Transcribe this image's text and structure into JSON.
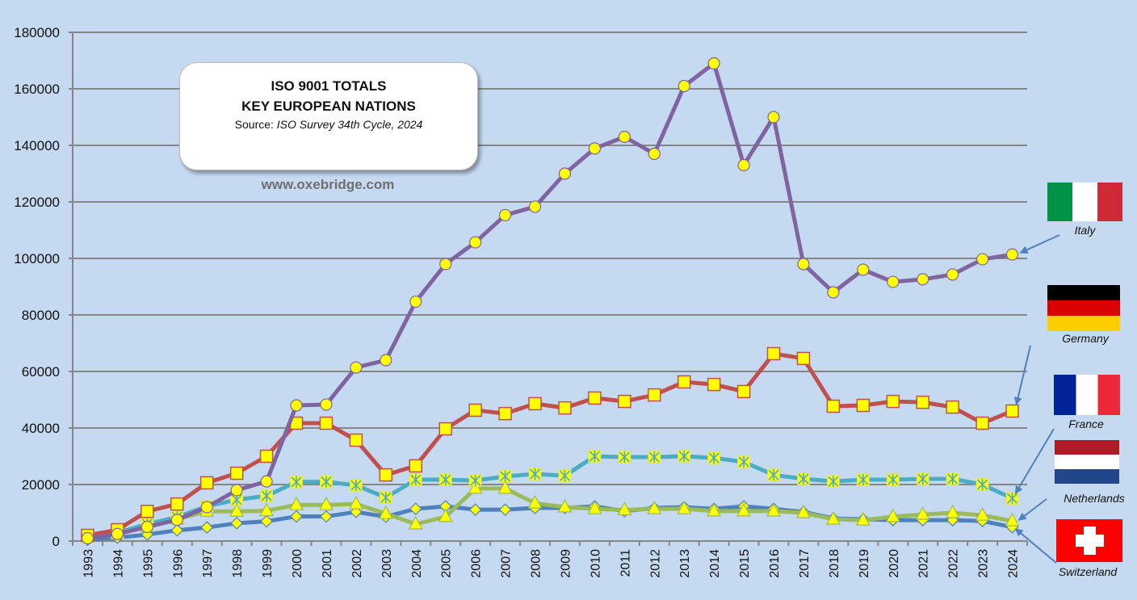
{
  "title_box": {
    "line1": "ISO 9001 TOTALS",
    "line2": "KEY EUROPEAN NATIONS",
    "source_prefix": "Source: ",
    "source_italic": "ISO Survey 34th Cycle, 2024"
  },
  "website": "www.oxebridge.com",
  "colors": {
    "background": "#c5d9f0",
    "gridline": "#868686",
    "marker_fill": "#ffff00"
  },
  "legend": [
    {
      "country": "Italy",
      "flag": "italy-flag",
      "colors": [
        "#009246",
        "#ffffff",
        "#ce2b37"
      ]
    },
    {
      "country": "Germany",
      "flag": "germany-flag",
      "colors": [
        "#000000",
        "#dd0000",
        "#ffce00"
      ]
    },
    {
      "country": "France",
      "flag": "france-flag",
      "colors": [
        "#002395",
        "#ffffff",
        "#ed2939"
      ]
    },
    {
      "country": "Netherlands",
      "flag": "netherlands-flag",
      "colors": [
        "#ae1c28",
        "#ffffff",
        "#21468b"
      ]
    },
    {
      "country": "Switzerland",
      "flag": "switzerland-flag",
      "colors": [
        "#ff0000",
        "#ffffff"
      ]
    }
  ],
  "chart_data": {
    "type": "line",
    "title": "ISO 9001 TOTALS - KEY EUROPEAN NATIONS",
    "subtitle": "Source: ISO Survey 34th Cycle, 2024",
    "xlabel": "",
    "ylabel": "",
    "ylim": [
      0,
      180000
    ],
    "yticks": [
      "0",
      "20000",
      "40000",
      "60000",
      "80000",
      "100000",
      "120000",
      "140000",
      "160000",
      "180000"
    ],
    "grid": true,
    "legend_position": "right",
    "x": [
      "1993",
      "1994",
      "1995",
      "1996",
      "1997",
      "1998",
      "1999",
      "2000",
      "2001",
      "2002",
      "2003",
      "2004",
      "2005",
      "2006",
      "2007",
      "2008",
      "2009",
      "2010",
      "2011",
      "2012",
      "2013",
      "2014",
      "2015",
      "2016",
      "2017",
      "2018",
      "2019",
      "2020",
      "2021",
      "2022",
      "2023",
      "2024"
    ],
    "series": [
      {
        "name": "Italy",
        "color": "#8064a2",
        "marker": "circle",
        "values": [
          1000,
          2500,
          5000,
          7500,
          12000,
          18000,
          21100,
          48000,
          48300,
          61400,
          64000,
          84700,
          98000,
          105700,
          115300,
          118300,
          130000,
          138900,
          143000,
          137000,
          161000,
          169000,
          133000,
          150000,
          98000,
          88000,
          96000,
          91700,
          92600,
          94300,
          99700,
          101400
        ]
      },
      {
        "name": "Germany",
        "color": "#c0504d",
        "marker": "square",
        "values": [
          2000,
          4000,
          10500,
          13100,
          20600,
          24000,
          30000,
          41700,
          41700,
          35700,
          23400,
          26600,
          39700,
          46300,
          45100,
          48600,
          47100,
          50600,
          49400,
          51700,
          56300,
          55400,
          52900,
          66300,
          64600,
          47700,
          48000,
          49400,
          49100,
          47400,
          41700,
          46000
        ]
      },
      {
        "name": "France",
        "color": "#4bacc6",
        "marker": "asterisk-square",
        "values": [
          1500,
          3000,
          6000,
          8500,
          12300,
          14600,
          16000,
          20900,
          21000,
          19700,
          15400,
          21700,
          21700,
          21400,
          22900,
          23700,
          23100,
          30000,
          29700,
          29700,
          30000,
          29400,
          28000,
          23400,
          22000,
          21100,
          21700,
          21700,
          22000,
          22000,
          20000,
          15100
        ]
      },
      {
        "name": "Netherlands",
        "color": "#9bbb59",
        "marker": "triangle",
        "values": [
          1500,
          2800,
          5000,
          7800,
          10500,
          10500,
          10700,
          12800,
          12800,
          13100,
          9700,
          6000,
          8600,
          18600,
          18600,
          13400,
          12000,
          11400,
          11000,
          11400,
          11400,
          10600,
          10600,
          10600,
          10000,
          7700,
          7400,
          8600,
          9400,
          10000,
          9100,
          7100
        ]
      },
      {
        "name": "Switzerland",
        "color": "#4f81bd",
        "marker": "diamond",
        "values": [
          500,
          1200,
          2300,
          3800,
          4800,
          6300,
          7000,
          8700,
          8700,
          10300,
          8600,
          11400,
          12300,
          11100,
          11100,
          11700,
          11700,
          12300,
          10600,
          11700,
          12000,
          11400,
          12300,
          11400,
          10300,
          8000,
          7700,
          7400,
          7400,
          7400,
          7100,
          4900
        ]
      }
    ]
  }
}
